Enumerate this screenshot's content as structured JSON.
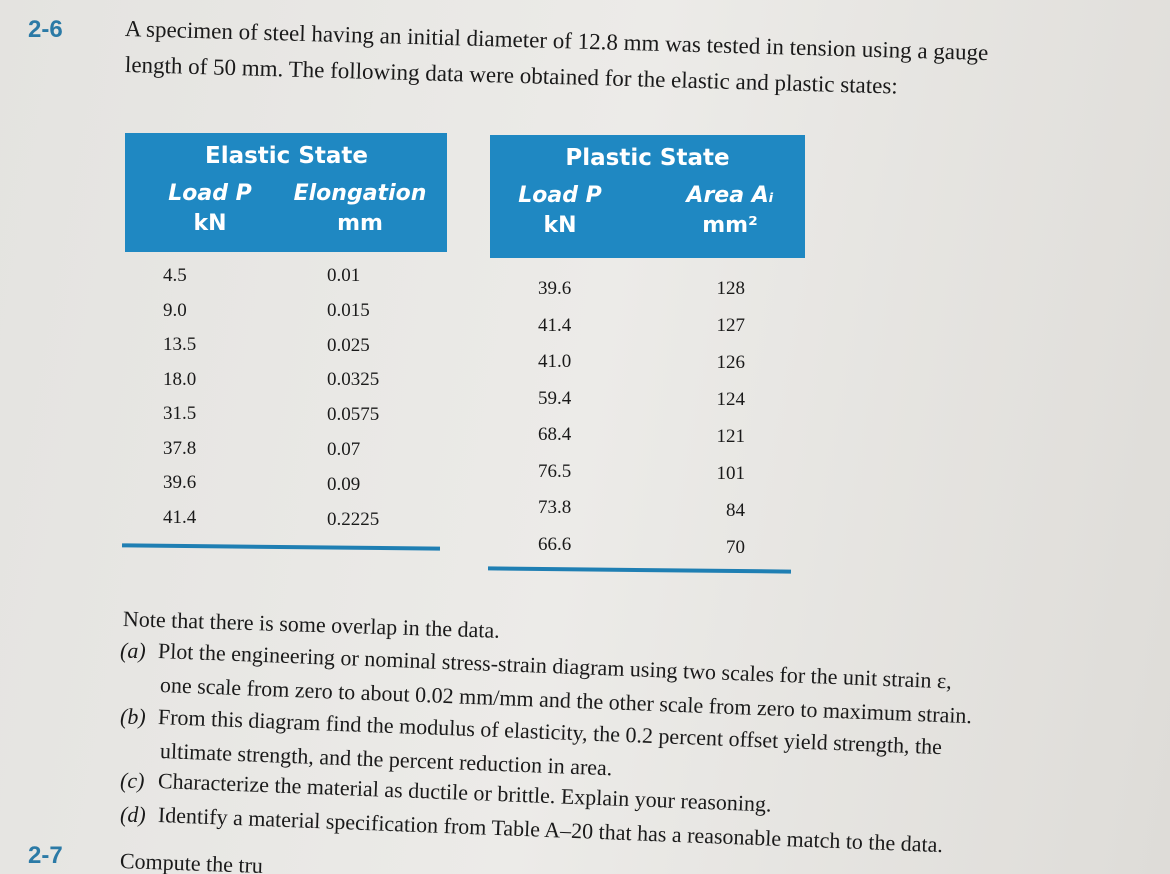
{
  "problem": {
    "number": "2-6",
    "lines": [
      "A specimen of steel having an initial diameter of 12.8 mm was tested in tension using a gauge",
      "length of 50 mm. The following data were obtained for the elastic and plastic states:"
    ]
  },
  "tables": [
    {
      "title": "Elastic State",
      "headers": [
        [
          "Load P",
          "kN"
        ],
        [
          "Elongation",
          "mm"
        ]
      ],
      "rows": [
        [
          "4.5",
          "0.01"
        ],
        [
          "9.0",
          "0.015"
        ],
        [
          "13.5",
          "0.025"
        ],
        [
          "18.0",
          "0.0325"
        ],
        [
          "31.5",
          "0.0575"
        ],
        [
          "37.8",
          "0.07"
        ],
        [
          "39.6",
          "0.09"
        ],
        [
          "41.4",
          "0.2225"
        ]
      ]
    },
    {
      "title": "Plastic State",
      "headers": [
        [
          "Load P",
          "kN"
        ],
        [
          "Area Aᵢ",
          "mm²"
        ]
      ],
      "rows": [
        [
          "39.6",
          "128"
        ],
        [
          "41.4",
          "127"
        ],
        [
          "41.0",
          "126"
        ],
        [
          "59.4",
          "124"
        ],
        [
          "68.4",
          "121"
        ],
        [
          "76.5",
          "101"
        ],
        [
          "73.8",
          "84"
        ],
        [
          "66.6",
          "70"
        ]
      ]
    }
  ],
  "note": "Note that there is some overlap in the data.",
  "items": [
    {
      "label": "(a)",
      "lines": [
        "Plot the engineering or nominal stress-strain diagram using two scales for the unit strain ε,",
        "one scale from zero to about 0.02 mm/mm and the other scale from zero to maximum strain."
      ]
    },
    {
      "label": "(b)",
      "lines": [
        "From this diagram find the modulus of elasticity, the 0.2 percent offset yield strength, the",
        "ultimate strength, and the percent reduction in area."
      ]
    },
    {
      "label": "(c)",
      "lines": [
        "Characterize the material as ductile or brittle. Explain your reasoning."
      ]
    },
    {
      "label": "(d)",
      "lines": [
        "Identify a material specification from Table A–20 that has a reasonable match to the data."
      ]
    }
  ],
  "next_problem": {
    "number": "2-7",
    "text": "Compute the tru"
  }
}
